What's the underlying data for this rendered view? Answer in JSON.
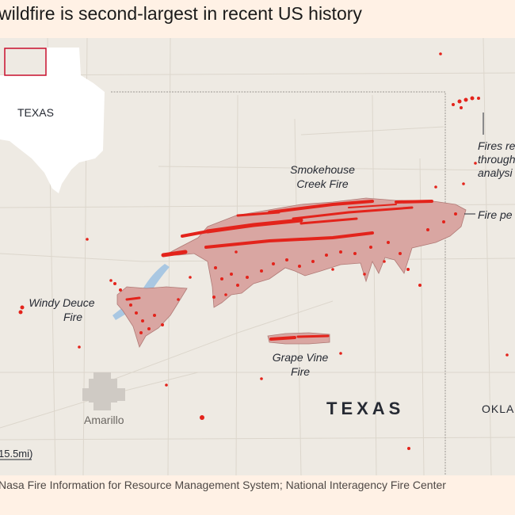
{
  "headline": "wildfire is second-largest in recent US history",
  "source": "Nasa Fire Information for Resource Management System; National Interagency Fire Center",
  "map": {
    "inset_label": "TEXAS",
    "state_label": "TEXAS",
    "neighbor_label": "OKLA",
    "city_label": "Amarillo",
    "scale_label": "15.5mi)",
    "fires": [
      {
        "name_line1": "Smokehouse",
        "name_line2": "Creek Fire"
      },
      {
        "name_line1": "Windy Deuce",
        "name_line2": "Fire"
      },
      {
        "name_line1": "Grape Vine",
        "name_line2": "Fire"
      }
    ],
    "annotations": {
      "detections_line1": "Fires re",
      "detections_line2": "through",
      "detections_line3": "analysi",
      "perimeter": "Fire pe"
    },
    "colors": {
      "background": "#fff1e5",
      "land": "#eeeae3",
      "perimeter_fill": "#d9a6a2",
      "perimeter_stroke": "#b07a76",
      "hotspot": "#e3231b",
      "water": "#a9c7e2",
      "inset_box": "#c8102e"
    }
  }
}
